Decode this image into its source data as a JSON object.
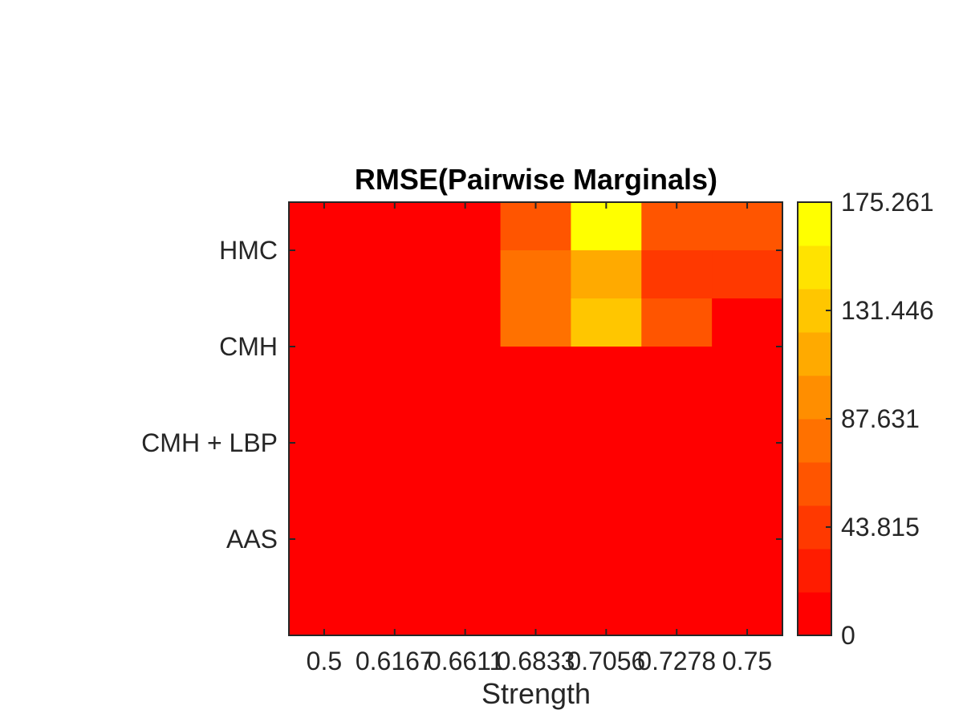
{
  "chart_data": {
    "type": "heatmap",
    "title": "RMSE(Pairwise Marginals)",
    "xlabel": "Strength",
    "ylabel": "",
    "x_tick_labels": [
      "0.5",
      "0.6167",
      "0.6611",
      "0.6833",
      "0.7056",
      "0.7278",
      "0.75"
    ],
    "y_tick_labels": [
      "HMC",
      "CMH",
      "CMH + LBP",
      "AAS"
    ],
    "colorbar": {
      "ticks": [
        "0",
        "43.815",
        "87.631",
        "131.446",
        "175.261"
      ],
      "min": 0,
      "max": 175.261,
      "colormap": "autumn",
      "levels": 10
    },
    "grid": false,
    "columns": 7,
    "rows": 9,
    "values": [
      [
        0,
        0,
        0,
        52.6,
        175.3,
        61.3,
        61.3
      ],
      [
        0,
        0,
        0,
        78.9,
        105.2,
        35.1,
        35.1
      ],
      [
        0,
        0,
        0,
        78.9,
        131.4,
        52.6,
        0
      ],
      [
        0,
        0,
        0,
        0,
        0,
        0,
        0
      ],
      [
        0,
        0,
        0,
        0,
        0,
        0,
        0
      ],
      [
        0,
        0,
        0,
        0,
        0,
        0,
        0
      ],
      [
        0,
        0,
        0,
        0,
        0,
        0,
        0
      ],
      [
        0,
        0,
        0,
        0,
        0,
        0,
        0
      ],
      [
        0,
        0,
        0,
        0,
        0,
        0,
        0
      ]
    ]
  }
}
